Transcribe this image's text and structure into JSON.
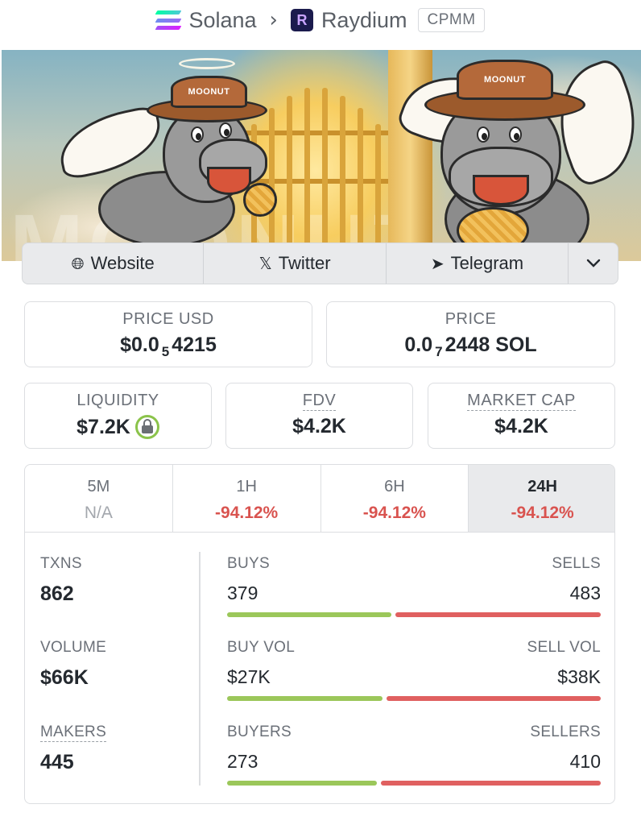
{
  "breadcrumb": {
    "chain": "Solana",
    "dex": "Raydium",
    "pool_type": "CPMM"
  },
  "banner": {
    "hat_text_left": "MOONUT",
    "hat_text_right": "MOONUT",
    "watermark": "MOONUT"
  },
  "links": {
    "website": "Website",
    "twitter": "Twitter",
    "telegram": "Telegram"
  },
  "price_usd": {
    "label": "PRICE USD",
    "prefix": "$0.0",
    "zeros": "5",
    "digits": "4215"
  },
  "price_native": {
    "label": "PRICE",
    "prefix": "0.0",
    "zeros": "7",
    "digits": "2448 SOL"
  },
  "liquidity": {
    "label": "LIQUIDITY",
    "value": "$7.2K",
    "locked": true
  },
  "fdv": {
    "label": "FDV",
    "value": "$4.2K"
  },
  "market_cap": {
    "label": "MARKET CAP",
    "value": "$4.2K"
  },
  "timeframes": [
    {
      "label": "5M",
      "change": "N/A"
    },
    {
      "label": "1H",
      "change": "-94.12%"
    },
    {
      "label": "6H",
      "change": "-94.12%"
    },
    {
      "label": "24H",
      "change": "-94.12%",
      "active": true
    }
  ],
  "stats": {
    "txns": {
      "label": "TXNS",
      "value": "862"
    },
    "buys": {
      "label": "BUYS",
      "value": "379",
      "fraction": 0.44
    },
    "sells": {
      "label": "SELLS",
      "value": "483"
    },
    "volume": {
      "label": "VOLUME",
      "value": "$66K"
    },
    "buy_vol": {
      "label": "BUY VOL",
      "value": "$27K",
      "fraction": 0.415
    },
    "sell_vol": {
      "label": "SELL VOL",
      "value": "$38K"
    },
    "makers": {
      "label": "MAKERS",
      "value": "445"
    },
    "buyers": {
      "label": "BUYERS",
      "value": "273",
      "fraction": 0.4
    },
    "sellers": {
      "label": "SELLERS",
      "value": "410"
    }
  },
  "colors": {
    "buy": "#9bc75a",
    "sell": "#e06060",
    "negative_change": "#d9534f"
  }
}
